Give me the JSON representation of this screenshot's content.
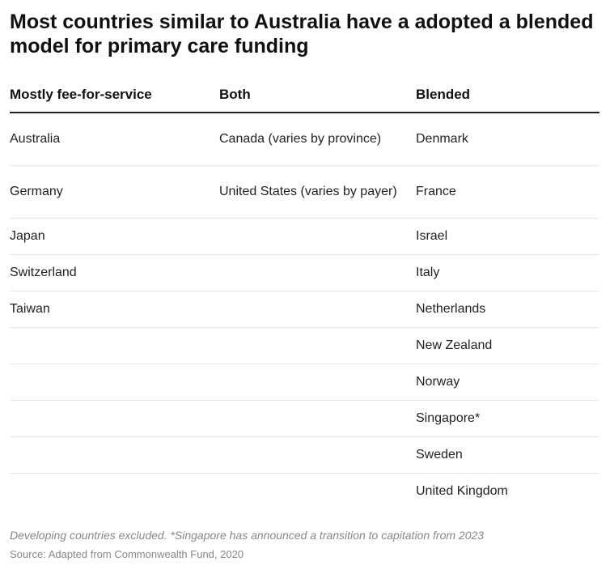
{
  "title": "Most countries similar to Australia have a adopted a blended model for primary care funding",
  "table": {
    "headers": [
      "Mostly fee-for-service",
      "Both",
      "Blended"
    ],
    "rows": [
      [
        "Australia",
        "Canada (varies by province)",
        "Denmark"
      ],
      [
        "Germany",
        "United States (varies by payer)",
        "France"
      ],
      [
        "Japan",
        "",
        "Israel"
      ],
      [
        "Switzerland",
        "",
        "Italy"
      ],
      [
        "Taiwan",
        "",
        "Netherlands"
      ],
      [
        "",
        "",
        "New Zealand"
      ],
      [
        "",
        "",
        "Norway"
      ],
      [
        "",
        "",
        "Singapore*"
      ],
      [
        "",
        "",
        "Sweden"
      ],
      [
        "",
        "",
        "United Kingdom"
      ]
    ]
  },
  "footer": {
    "note": "Developing countries excluded. *Singapore has announced a transition to capitation from 2023",
    "source": "Source: Adapted from Commonwealth Fund, 2020"
  }
}
